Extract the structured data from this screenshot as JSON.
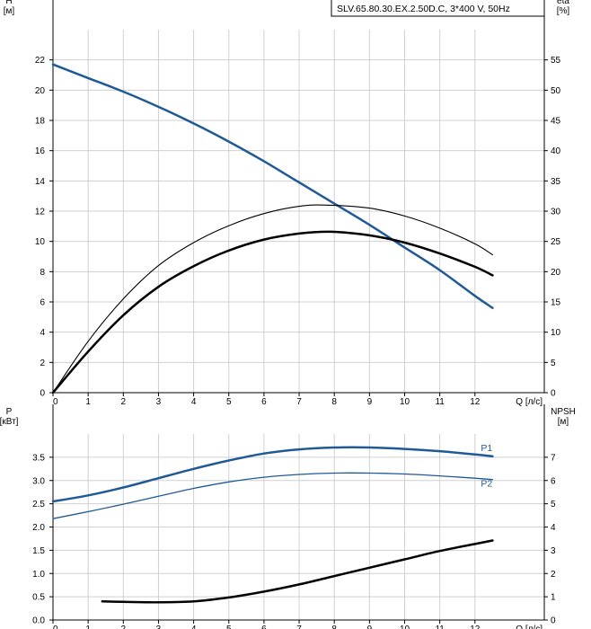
{
  "model_label": "SLV.65.80.30.EX.2.50D.C, 3*400 V, 50Hz",
  "chart_data": [
    {
      "type": "line",
      "x_unit_label": "Q [л/с]",
      "y_left_label": "H",
      "y_left_unit": "[м]",
      "y_right_label": "eta",
      "y_right_unit": "[%]",
      "xlim": [
        0,
        13.5
      ],
      "ylim_left": [
        0,
        24
      ],
      "ylim_right": [
        0,
        60
      ],
      "x_ticks": [
        "0",
        "1",
        "2",
        "3",
        "4",
        "5",
        "6",
        "7",
        "8",
        "9",
        "10",
        "11",
        "12"
      ],
      "y_left_ticks": [
        "0",
        "2",
        "4",
        "6",
        "8",
        "10",
        "12",
        "14",
        "16",
        "18",
        "20",
        "22"
      ],
      "y_right_ticks": [
        "0",
        "5",
        "10",
        "15",
        "20",
        "25",
        "30",
        "35",
        "40",
        "45",
        "50",
        "55"
      ],
      "grid": true,
      "series": [
        {
          "axis": "left",
          "color": "#1f5a96",
          "x": [
            0,
            1,
            2,
            3,
            4,
            5,
            6,
            7,
            8,
            9,
            10,
            11,
            12,
            12.5
          ],
          "y": [
            21.7,
            20.8,
            19.9,
            18.9,
            17.8,
            16.6,
            15.3,
            13.9,
            12.5,
            11.1,
            9.6,
            8.1,
            6.4,
            5.6
          ]
        },
        {
          "axis": "right",
          "color": "#000000",
          "x": [
            0,
            1,
            2,
            3,
            4,
            5,
            6,
            7,
            7.8,
            9,
            10,
            11,
            12,
            12.5
          ],
          "y": [
            0,
            8.5,
            15.5,
            21,
            24.8,
            27.6,
            29.6,
            30.8,
            31,
            30.5,
            29.2,
            27.2,
            24.6,
            22.8
          ]
        },
        {
          "axis": "right",
          "color": "#000000",
          "x": [
            0,
            1,
            2,
            3,
            4,
            5,
            6,
            7,
            7.9,
            9,
            10,
            11,
            12,
            12.5
          ],
          "y": [
            0,
            6.8,
            12.8,
            17.5,
            20.9,
            23.5,
            25.3,
            26.3,
            26.6,
            26,
            24.8,
            23,
            20.8,
            19.4
          ]
        }
      ]
    },
    {
      "type": "line",
      "x_unit_label": "Q [л/с]",
      "y_left_label": "P",
      "y_left_unit": "[кВт]",
      "y_right_label": "NPSH",
      "y_right_unit": "[м]",
      "xlim": [
        0,
        13.5
      ],
      "ylim_left": [
        0,
        4.0
      ],
      "ylim_right": [
        0,
        8
      ],
      "x_ticks": [
        "0",
        "1",
        "2",
        "3",
        "4",
        "5",
        "6",
        "7",
        "8",
        "9",
        "10",
        "11",
        "12"
      ],
      "y_left_ticks": [
        "0.0",
        "0.5",
        "1.0",
        "1.5",
        "2.0",
        "2.5",
        "3.0",
        "3.5"
      ],
      "y_right_ticks": [
        "0",
        "1",
        "2",
        "3",
        "4",
        "5",
        "6",
        "7"
      ],
      "grid": true,
      "series": [
        {
          "name": "P1",
          "axis": "left",
          "color": "#1f5a96",
          "x": [
            0,
            1,
            2,
            3,
            4,
            5,
            6,
            7,
            8,
            9,
            10,
            11,
            12,
            12.5
          ],
          "y": [
            2.55,
            2.68,
            2.85,
            3.05,
            3.25,
            3.43,
            3.58,
            3.67,
            3.71,
            3.71,
            3.68,
            3.63,
            3.56,
            3.52
          ]
        },
        {
          "name": "P2",
          "axis": "left",
          "color": "#1f5a96",
          "x": [
            0,
            1,
            2,
            3,
            4,
            5,
            6,
            7,
            8,
            9,
            10,
            11,
            12,
            12.5
          ],
          "y": [
            2.18,
            2.33,
            2.49,
            2.66,
            2.83,
            2.97,
            3.07,
            3.13,
            3.16,
            3.16,
            3.14,
            3.1,
            3.05,
            3.02
          ]
        },
        {
          "axis": "right",
          "color": "#000000",
          "x": [
            1.4,
            2,
            3,
            4,
            5,
            6,
            7,
            8,
            9,
            10,
            11,
            12,
            12.5
          ],
          "y": [
            0.8,
            0.78,
            0.76,
            0.8,
            0.97,
            1.22,
            1.53,
            1.89,
            2.25,
            2.61,
            2.97,
            3.27,
            3.42
          ]
        }
      ]
    }
  ]
}
